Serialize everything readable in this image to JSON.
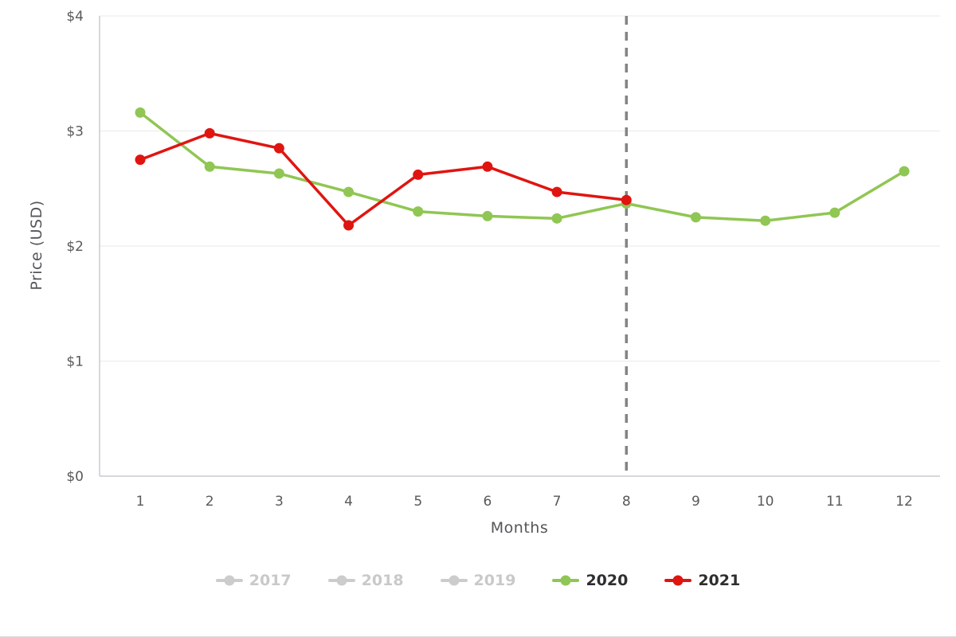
{
  "chart_data": {
    "type": "line",
    "title": "",
    "xlabel": "Months",
    "ylabel": "Price (USD)",
    "x": [
      1,
      2,
      3,
      4,
      5,
      6,
      7,
      8,
      9,
      10,
      11,
      12
    ],
    "ylim": [
      0,
      4
    ],
    "y_ticks": [
      {
        "value": 0,
        "label": "$0"
      },
      {
        "value": 1,
        "label": "$1"
      },
      {
        "value": 2,
        "label": "$2"
      },
      {
        "value": 3,
        "label": "$3"
      },
      {
        "value": 4,
        "label": "$4"
      }
    ],
    "grid": true,
    "legend_position": "bottom",
    "reference_line": {
      "x": 8,
      "style": "dashed",
      "color": "#848484"
    },
    "series": [
      {
        "name": "2017",
        "visible": false,
        "color": "#cccccc",
        "values": []
      },
      {
        "name": "2018",
        "visible": false,
        "color": "#cccccc",
        "values": []
      },
      {
        "name": "2019",
        "visible": false,
        "color": "#cccccc",
        "values": []
      },
      {
        "name": "2020",
        "visible": true,
        "color": "#90c653",
        "values": [
          3.16,
          2.69,
          2.63,
          2.47,
          2.3,
          2.26,
          2.24,
          2.37,
          2.25,
          2.22,
          2.29,
          2.65
        ]
      },
      {
        "name": "2021",
        "visible": true,
        "color": "#e01510",
        "values": [
          2.75,
          2.98,
          2.85,
          2.18,
          2.62,
          2.69,
          2.47,
          2.4
        ]
      }
    ]
  }
}
